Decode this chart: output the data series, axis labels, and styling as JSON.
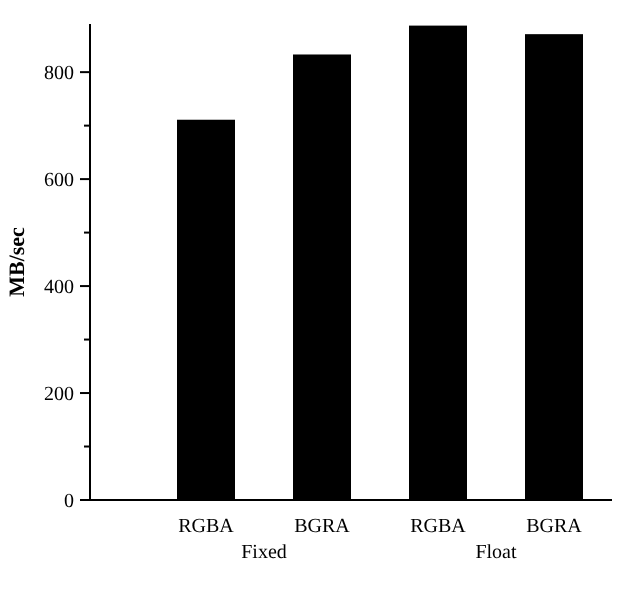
{
  "chart_data": {
    "type": "bar",
    "ylabel": "MB/sec",
    "categories": [
      "RGBA",
      "BGRA",
      "RGBA",
      "BGRA"
    ],
    "values": [
      711,
      833,
      887,
      871
    ],
    "color": "#000000",
    "ylim": [
      0,
      890
    ],
    "yticks": [
      0,
      {
        "value": 100,
        "label": null
      },
      200,
      {
        "value": 300,
        "label": null
      },
      400,
      {
        "value": 500,
        "label": null
      },
      600,
      {
        "value": 700,
        "label": null
      },
      800
    ],
    "annotations": [
      "Fixed",
      "Float"
    ]
  }
}
